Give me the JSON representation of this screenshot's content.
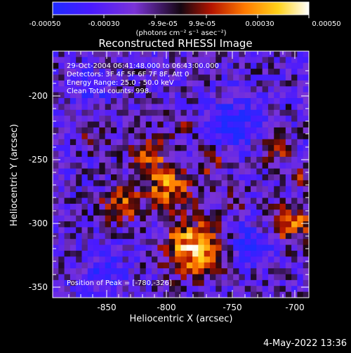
{
  "colorbar": {
    "ticks": [
      "-0.00050",
      "-0.00030",
      "-9.9e-05",
      "9.9e-05",
      "0.00030",
      "0.00050"
    ],
    "unit_label": "(photons cm⁻² s⁻¹ asec⁻²)",
    "colors": [
      "#1f2bff",
      "#4a1aff",
      "#7a33d6",
      "#1a0a12",
      "#c81e00",
      "#ff7a00",
      "#ffd21a",
      "#ffffff"
    ]
  },
  "plot": {
    "title": "Reconstructed RHESSI Image",
    "xlabel": "Heliocentric X (arcsec)",
    "ylabel": "Heliocentric Y (arcsec)",
    "x_ticks": [
      "-850",
      "-800",
      "-750",
      "-700"
    ],
    "y_ticks": [
      "-200",
      "-250",
      "-300",
      "-350"
    ],
    "info_lines": [
      "29-Oct-2004 06:41:48.000 to 06:43:00.000",
      "Detectors: 3F 4F 5F 6F 7F 8F, Att 0",
      "Energy Range: 25.0 - 50.0 keV",
      "Clean      Total counts: 998."
    ],
    "peak_label": "Position of Peak = [-780,-326]"
  },
  "footer": {
    "timestamp": "4-May-2022 13:36"
  }
}
